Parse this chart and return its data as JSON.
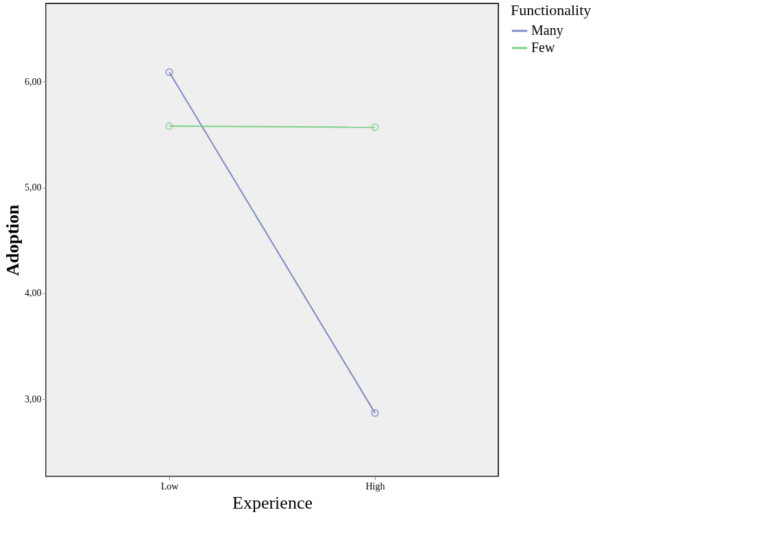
{
  "chart_data": {
    "type": "line",
    "xlabel": "Experience",
    "ylabel": "Adoption",
    "legend_title": "Functionality",
    "categories": [
      "Low",
      "High"
    ],
    "series": [
      {
        "name": "Many",
        "color": "#7f88c8",
        "values": [
          6.09,
          2.87
        ]
      },
      {
        "name": "Few",
        "color": "#7fcf8a",
        "values": [
          5.58,
          5.57
        ]
      }
    ],
    "ylim": [
      2.27,
      6.74
    ],
    "yticks": [
      {
        "value": 3,
        "label": "3,00"
      },
      {
        "value": 4,
        "label": "4,00"
      },
      {
        "value": 5,
        "label": "5,00"
      },
      {
        "value": 6,
        "label": "6,00"
      }
    ],
    "grid": false,
    "legend": "top right",
    "marker": "circle",
    "line_style": "solid"
  }
}
